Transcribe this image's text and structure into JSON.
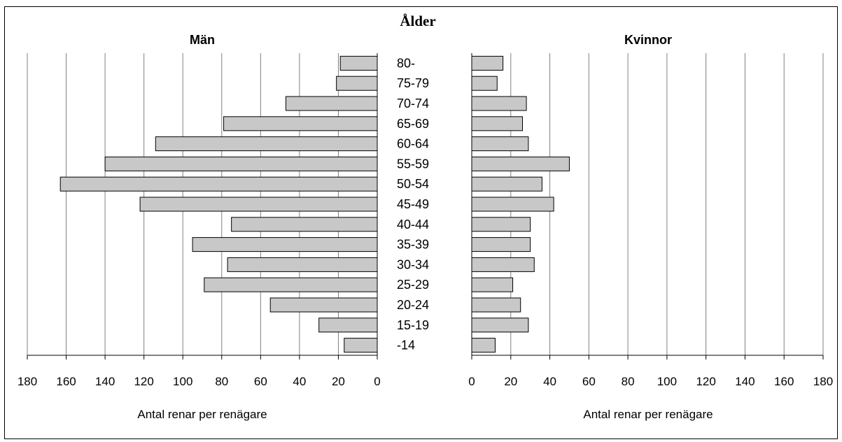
{
  "chart_data": {
    "type": "bar",
    "title": "Ålder",
    "categories": [
      "80-",
      "75-79",
      "70-74",
      "65-69",
      "60-64",
      "55-59",
      "50-54",
      "45-49",
      "40-44",
      "35-39",
      "30-34",
      "25-29",
      "20-24",
      "15-19",
      "-14"
    ],
    "series": [
      {
        "name": "Män",
        "values": [
          19,
          21,
          47,
          79,
          114,
          140,
          163,
          122,
          75,
          95,
          77,
          89,
          55,
          30,
          17
        ]
      },
      {
        "name": "Kvinnor",
        "values": [
          16,
          13,
          28,
          26,
          29,
          50,
          36,
          42,
          30,
          30,
          32,
          21,
          25,
          29,
          12
        ]
      }
    ],
    "xlabel": "Antal renar per renägare",
    "xlim": [
      0,
      180
    ],
    "x_ticks": [
      0,
      20,
      40,
      60,
      80,
      100,
      120,
      140,
      160,
      180
    ],
    "grid": true,
    "bar_color": "#c8c8c8",
    "bar_stroke": "#000000",
    "grid_color": "#808080"
  }
}
